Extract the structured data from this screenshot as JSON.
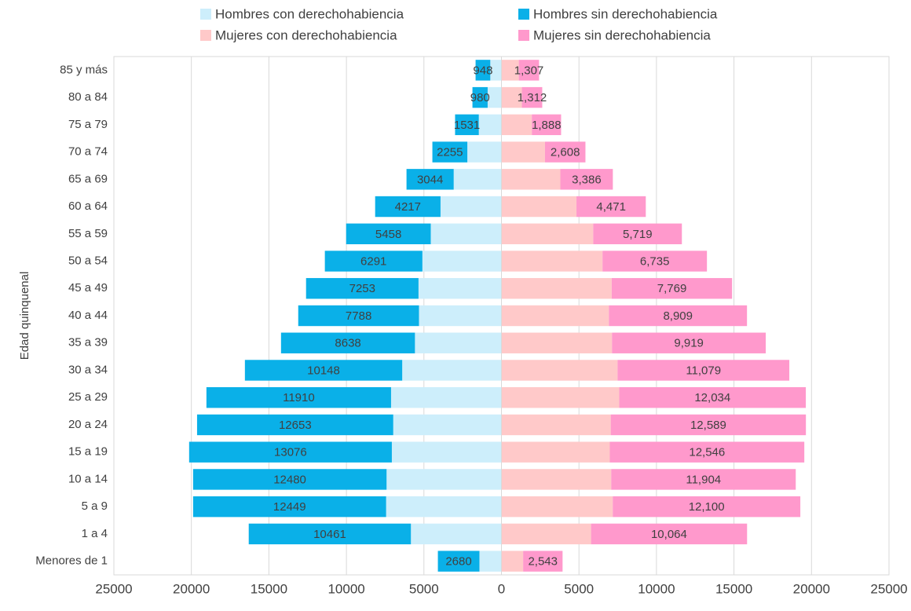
{
  "chart_data": {
    "type": "bar",
    "orientation": "horizontal",
    "stacked": true,
    "y_label": "Edad quinquenal",
    "categories": [
      "Menores de 1",
      "1 a 4",
      "5 a 9",
      "10 a 14",
      "15 a 19",
      "20 a 24",
      "25 a 29",
      "30 a 34",
      "35 a 39",
      "40 a 44",
      "45 a 49",
      "50 a 54",
      "55 a 59",
      "60 a 64",
      "65 a 69",
      "70 a 74",
      "75 a 79",
      "80 a 84",
      "85 y más"
    ],
    "series": [
      {
        "name": "Hombres con derechohabiencia",
        "color": "#cdeefb",
        "values": [
          -1420,
          -5840,
          -7440,
          -7410,
          -7070,
          -6980,
          -7120,
          -6400,
          -5580,
          -5320,
          -5350,
          -5100,
          -4560,
          -3930,
          -3080,
          -2200,
          -1460,
          -890,
          -720
        ]
      },
      {
        "name": "Hombres sin derechohabiencia",
        "color": "#0ab0e8",
        "values": [
          -2680,
          -10461,
          -12449,
          -12480,
          -13076,
          -12653,
          -11910,
          -10148,
          -8638,
          -7788,
          -7253,
          -6291,
          -5458,
          -4217,
          -3044,
          -2255,
          -1531,
          -980,
          -948
        ],
        "value_labels": [
          "2680",
          "10461",
          "12449",
          "12480",
          "13076",
          "12653",
          "11910",
          "10148",
          "8638",
          "7788",
          "7253",
          "6291",
          "5458",
          "4217",
          "3044",
          "2255",
          "1531",
          "980",
          "948"
        ]
      },
      {
        "name": "Mujeres con derechohabiencia",
        "color": "#ffc9c9",
        "values": [
          1400,
          5780,
          7180,
          7080,
          6990,
          7050,
          7600,
          7490,
          7130,
          6930,
          7110,
          6520,
          5920,
          4840,
          3800,
          2810,
          1960,
          1320,
          1120
        ]
      },
      {
        "name": "Mujeres sin derechohabiencia",
        "color": "#ff99cc",
        "values": [
          2543,
          10064,
          12100,
          11904,
          12546,
          12589,
          12034,
          11079,
          9919,
          8909,
          7769,
          6735,
          5719,
          4471,
          3386,
          2608,
          1888,
          1312,
          1307
        ],
        "value_labels": [
          "2,543",
          "10,064",
          "12,100",
          "11,904",
          "12,546",
          "12,589",
          "12,034",
          "11,079",
          "9,919",
          "8,909",
          "7,769",
          "6,735",
          "5,719",
          "4,471",
          "3,386",
          "2,608",
          "1,888",
          "1,312",
          "1,307"
        ]
      }
    ],
    "xlim": [
      -25000,
      25000
    ],
    "xticks": [
      {
        "value": -25000,
        "label": "25000"
      },
      {
        "value": -20000,
        "label": "20000"
      },
      {
        "value": -15000,
        "label": "15000"
      },
      {
        "value": -10000,
        "label": "10000"
      },
      {
        "value": -5000,
        "label": "5000"
      },
      0,
      5000,
      10000,
      15000,
      20000,
      25000
    ],
    "grid": true
  }
}
